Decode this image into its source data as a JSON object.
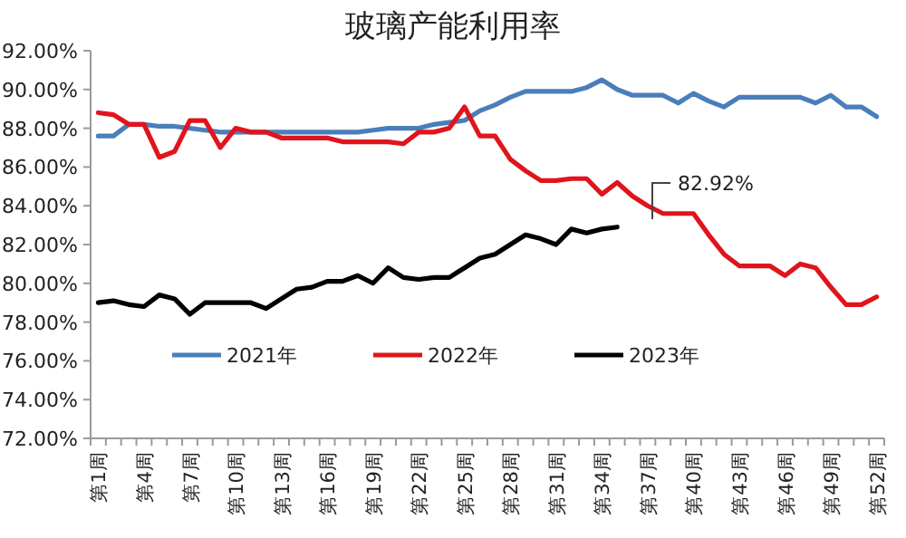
{
  "chart_data": {
    "type": "line",
    "title": "玻璃产能利用率",
    "categories": [
      "第1周",
      null,
      null,
      "第4周",
      null,
      null,
      "第7周",
      null,
      null,
      "第10周",
      null,
      null,
      "第13周",
      null,
      null,
      "第16周",
      null,
      null,
      "第19周",
      null,
      null,
      "第22周",
      null,
      null,
      "第25周",
      null,
      null,
      "第28周",
      null,
      null,
      "第31周",
      null,
      null,
      "第34周",
      null,
      null,
      "第37周",
      null,
      null,
      "第40周",
      null,
      null,
      "第43周",
      null,
      null,
      "第46周",
      null,
      null,
      "第49周",
      null,
      null,
      "第52周"
    ],
    "series": [
      {
        "name": "2021年",
        "color": "#4a7ebb",
        "values": [
          87.6,
          87.6,
          88.2,
          88.2,
          88.1,
          88.1,
          88.0,
          87.9,
          87.8,
          87.8,
          87.8,
          87.8,
          87.8,
          87.8,
          87.8,
          87.8,
          87.8,
          87.8,
          87.9,
          88.0,
          88.0,
          88.0,
          88.2,
          88.3,
          88.4,
          88.9,
          89.2,
          89.6,
          89.9,
          89.9,
          89.9,
          89.9,
          90.1,
          90.5,
          90.0,
          89.7,
          89.7,
          89.7,
          89.3,
          89.8,
          89.4,
          89.1,
          89.6,
          89.6,
          89.6,
          89.6,
          89.6,
          89.3,
          89.7,
          89.1,
          89.1,
          88.6
        ]
      },
      {
        "name": "2022年",
        "color": "#e0141c",
        "values": [
          88.8,
          88.7,
          88.2,
          88.2,
          86.5,
          86.8,
          88.4,
          88.4,
          87.0,
          88.0,
          87.8,
          87.8,
          87.5,
          87.5,
          87.5,
          87.5,
          87.3,
          87.3,
          87.3,
          87.3,
          87.2,
          87.8,
          87.8,
          88.0,
          89.1,
          87.6,
          87.6,
          86.4,
          85.8,
          85.3,
          85.3,
          85.4,
          85.4,
          84.6,
          85.2,
          84.5,
          84.0,
          83.6,
          83.6,
          83.6,
          82.5,
          81.5,
          80.9,
          80.9,
          80.9,
          80.4,
          81.0,
          80.8,
          79.8,
          78.9,
          78.9,
          79.3
        ]
      },
      {
        "name": "2023年",
        "color": "#000000",
        "values": [
          79.0,
          79.1,
          78.9,
          78.8,
          79.4,
          79.2,
          78.4,
          79.0,
          79.0,
          79.0,
          79.0,
          78.7,
          79.2,
          79.7,
          79.8,
          80.1,
          80.1,
          80.4,
          80.0,
          80.8,
          80.3,
          80.2,
          80.3,
          80.3,
          80.8,
          81.3,
          81.5,
          82.0,
          82.5,
          82.3,
          82.0,
          82.8,
          82.6,
          82.8,
          82.9,
          null,
          null,
          null,
          null,
          null,
          null,
          null,
          null,
          null,
          null,
          null,
          null,
          null,
          null,
          null,
          null,
          null
        ]
      }
    ],
    "ylim": [
      72,
      92
    ],
    "yticks": [
      {
        "value": 72,
        "label": "72.00%"
      },
      {
        "value": 74,
        "label": "74.00%"
      },
      {
        "value": 76,
        "label": "76.00%"
      },
      {
        "value": 78,
        "label": "78.00%"
      },
      {
        "value": 80,
        "label": "80.00%"
      },
      {
        "value": 82,
        "label": "82.00%"
      },
      {
        "value": 84,
        "label": "84.00%"
      },
      {
        "value": 86,
        "label": "86.00%"
      },
      {
        "value": 88,
        "label": "88.00%"
      },
      {
        "value": 90,
        "label": "90.00%"
      },
      {
        "value": 92,
        "label": "92.00%"
      }
    ],
    "legend": "bottom",
    "annotations": [
      "82.92%"
    ]
  }
}
